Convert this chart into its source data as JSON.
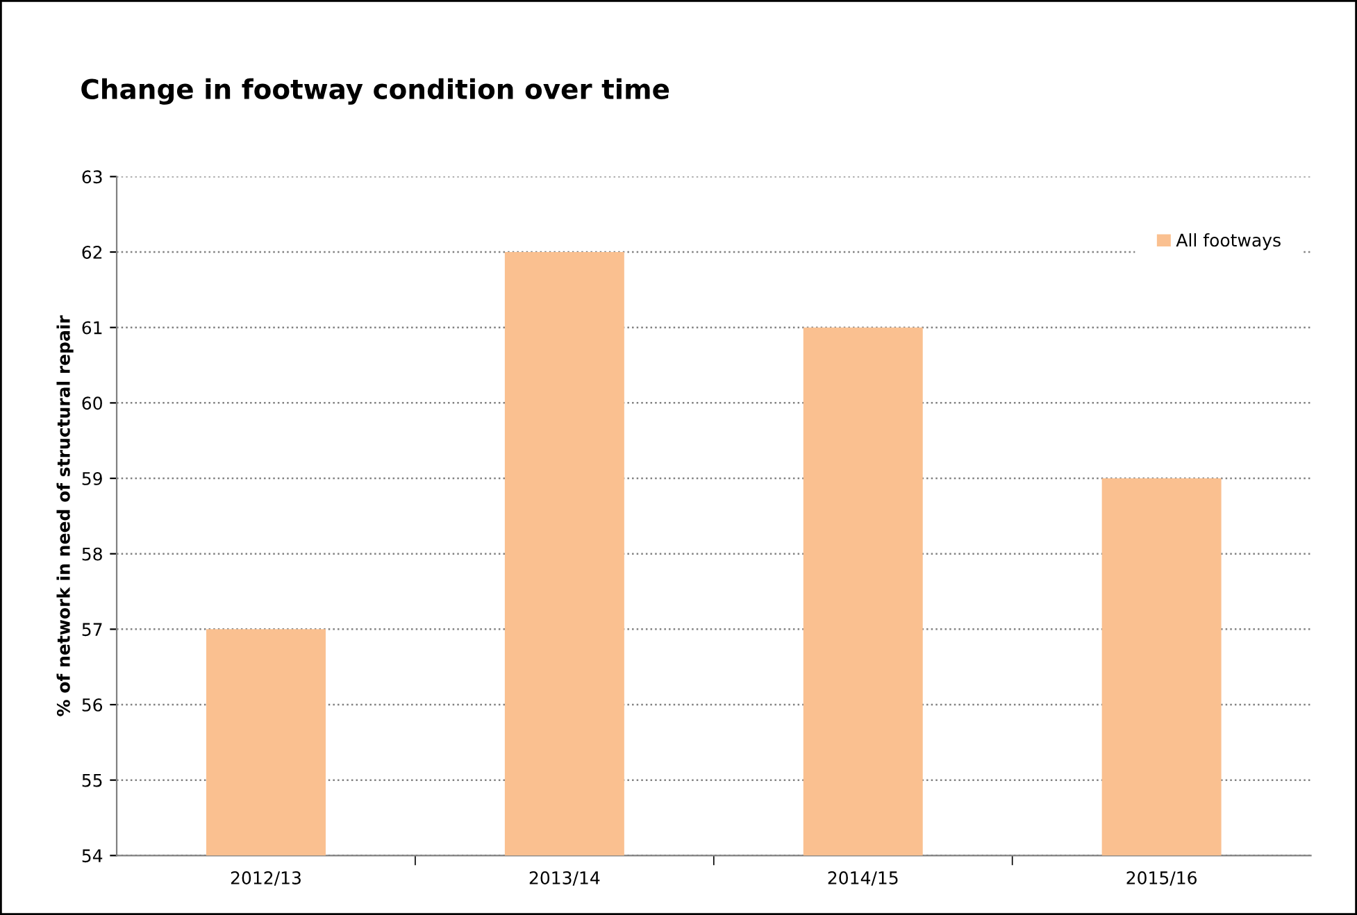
{
  "chart_data": {
    "type": "bar",
    "title": "Change in footway condition over time",
    "ylabel": "% of network in need of structural repair",
    "categories": [
      "2012/13",
      "2013/14",
      "2014/15",
      "2015/16"
    ],
    "series": [
      {
        "name": "All footways",
        "color": "#fac090",
        "values": [
          57,
          62,
          61,
          59
        ]
      }
    ],
    "ylim": [
      54,
      63
    ],
    "yticks": [
      54,
      55,
      56,
      57,
      58,
      59,
      60,
      61,
      62,
      63
    ],
    "grid": "y",
    "legend": "top right"
  }
}
